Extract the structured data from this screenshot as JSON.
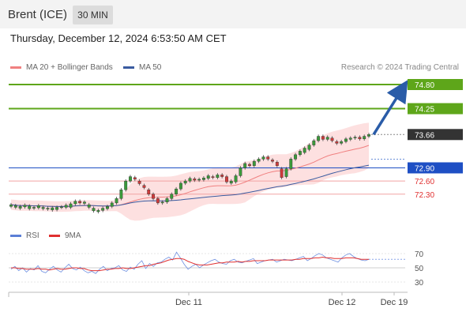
{
  "header": {
    "title": "Brent (ICE)",
    "timeframe": "30 MIN"
  },
  "datetime": "Thursday, December 12, 2024 6:53:50 AM CET",
  "legend": {
    "ma20": "MA 20 + Bollinger Bands",
    "ma50": "MA 50"
  },
  "credit": "Research © 2024 Trading Central",
  "rsi_legend": {
    "rsi": "RSI",
    "ma9": "9MA"
  },
  "colors": {
    "green": "#5ea61a",
    "blue": "#1e4fc4",
    "red": "#e03030",
    "ma20": "#f08080",
    "ma50": "#3a5ba0",
    "band": "#fde0e0",
    "arrow": "#2a5ca8",
    "price": "#333333",
    "grid": "#e8e8e8"
  },
  "chart_data": {
    "type": "candlestick",
    "y_range": [
      71.72,
      75.0
    ],
    "price_axis_labels": [
      {
        "label": "74.80",
        "value": 74.8,
        "style": "green-box"
      },
      {
        "label": "74.25",
        "value": 74.25,
        "style": "green-box"
      },
      {
        "label": "73.66",
        "value": 73.66,
        "style": "dark-box"
      },
      {
        "label": "72.90",
        "value": 72.9,
        "style": "blue-box"
      },
      {
        "label": "72.60",
        "value": 72.6,
        "style": "red-text"
      },
      {
        "label": "72.30",
        "value": 72.3,
        "style": "red-text"
      }
    ],
    "levels": [
      {
        "value": 74.8,
        "kind": "resistance"
      },
      {
        "value": 74.25,
        "kind": "resistance"
      },
      {
        "value": 72.9,
        "kind": "pivot"
      },
      {
        "value": 72.6,
        "kind": "support"
      },
      {
        "value": 72.3,
        "kind": "support"
      }
    ],
    "last_price": 73.66,
    "forecast_arrow": {
      "from": 73.66,
      "to": 74.8
    },
    "x_labels": [
      "Dec 11",
      "Dec 12",
      "Dec 19"
    ],
    "candles": [
      [
        72.02,
        72.06
      ],
      [
        72.0,
        72.04
      ],
      [
        71.98,
        72.02
      ],
      [
        72.01,
        72.05
      ],
      [
        71.97,
        72.03
      ],
      [
        71.98,
        72.0
      ],
      [
        71.99,
        72.04
      ],
      [
        71.97,
        72.0
      ],
      [
        71.96,
        71.98
      ],
      [
        71.94,
        71.99
      ],
      [
        71.95,
        72.0
      ],
      [
        72.0,
        72.01
      ],
      [
        72.0,
        72.05
      ],
      [
        72.0,
        72.08
      ],
      [
        72.08,
        72.14
      ],
      [
        72.14,
        72.1
      ],
      [
        72.09,
        72.12
      ],
      [
        72.0,
        72.06
      ],
      [
        71.92,
        71.98
      ],
      [
        71.9,
        71.93
      ],
      [
        71.93,
        71.98
      ],
      [
        71.97,
        72.02
      ],
      [
        72.02,
        72.1
      ],
      [
        72.1,
        72.2
      ],
      [
        72.2,
        72.4
      ],
      [
        72.4,
        72.6
      ],
      [
        72.6,
        72.7
      ],
      [
        72.68,
        72.64
      ],
      [
        72.6,
        72.54
      ],
      [
        72.5,
        72.45
      ],
      [
        72.4,
        72.3
      ],
      [
        72.3,
        72.2
      ],
      [
        72.2,
        72.1
      ],
      [
        72.1,
        72.12
      ],
      [
        72.12,
        72.2
      ],
      [
        72.2,
        72.3
      ],
      [
        72.3,
        72.42
      ],
      [
        72.42,
        72.55
      ],
      [
        72.55,
        72.6
      ],
      [
        72.6,
        72.66
      ],
      [
        72.65,
        72.62
      ],
      [
        72.62,
        72.64
      ],
      [
        72.63,
        72.67
      ],
      [
        72.66,
        72.72
      ],
      [
        72.7,
        72.68
      ],
      [
        72.68,
        72.74
      ],
      [
        72.74,
        72.7
      ],
      [
        72.7,
        72.58
      ],
      [
        72.55,
        72.6
      ],
      [
        72.58,
        72.72
      ],
      [
        72.72,
        72.9
      ],
      [
        72.9,
        73.0
      ],
      [
        72.98,
        72.95
      ],
      [
        72.95,
        73.05
      ],
      [
        73.05,
        73.1
      ],
      [
        73.1,
        73.15
      ],
      [
        73.15,
        73.1
      ],
      [
        73.08,
        73.05
      ],
      [
        73.03,
        72.95
      ],
      [
        72.88,
        72.68
      ],
      [
        72.7,
        72.88
      ],
      [
        72.88,
        73.1
      ],
      [
        73.1,
        73.2
      ],
      [
        73.2,
        73.28
      ],
      [
        73.25,
        73.35
      ],
      [
        73.32,
        73.42
      ],
      [
        73.42,
        73.52
      ],
      [
        73.52,
        73.62
      ],
      [
        73.62,
        73.55
      ],
      [
        73.55,
        73.6
      ],
      [
        73.58,
        73.52
      ],
      [
        73.5,
        73.46
      ],
      [
        73.46,
        73.5
      ],
      [
        73.5,
        73.56
      ],
      [
        73.55,
        73.58
      ],
      [
        73.58,
        73.6
      ],
      [
        73.6,
        73.56
      ],
      [
        73.56,
        73.62
      ],
      [
        73.62,
        73.66
      ]
    ],
    "rsi_panel": {
      "labels": [
        "70",
        "50",
        "30"
      ],
      "levels": [
        70,
        50,
        30
      ],
      "rsi": [
        48,
        52,
        46,
        50,
        44,
        49,
        47,
        53,
        45,
        43,
        48,
        52,
        47,
        44,
        50,
        55,
        49,
        47,
        51,
        46,
        43,
        45,
        42,
        48,
        52,
        46,
        49,
        50,
        53,
        47,
        45,
        51,
        48,
        55,
        60,
        49,
        56,
        52,
        57,
        58,
        62,
        65,
        61,
        72,
        64,
        55,
        48,
        52,
        55,
        50,
        54,
        57,
        60,
        62,
        58,
        56,
        55,
        60,
        62,
        58,
        57,
        59,
        61,
        63,
        56,
        58,
        60,
        61,
        62,
        58,
        60,
        62,
        61,
        60,
        62,
        64,
        66,
        60,
        63,
        67,
        70,
        68,
        64,
        62,
        60,
        58,
        64,
        68,
        70,
        66,
        63,
        61,
        60,
        62
      ],
      "ma9": [
        50,
        50,
        49,
        49,
        48,
        48,
        48,
        49,
        48,
        48,
        47,
        48,
        49,
        48,
        48,
        49,
        50,
        50,
        49,
        49,
        47,
        46,
        46,
        46,
        47,
        48,
        48,
        49,
        49,
        50,
        49,
        49,
        50,
        51,
        52,
        53,
        53,
        55,
        56,
        57,
        59,
        61,
        62,
        63,
        63,
        62,
        59,
        57,
        55,
        54,
        54,
        54,
        55,
        56,
        57,
        57,
        58,
        58,
        58,
        59,
        58,
        59,
        59,
        60,
        60,
        60,
        60,
        61,
        61,
        61,
        61,
        61,
        61,
        61,
        62,
        62,
        63,
        63,
        63,
        64,
        64,
        65,
        64,
        64,
        63,
        63,
        63,
        64,
        64,
        64,
        63,
        62,
        62,
        62
      ],
      "last": 62
    }
  }
}
